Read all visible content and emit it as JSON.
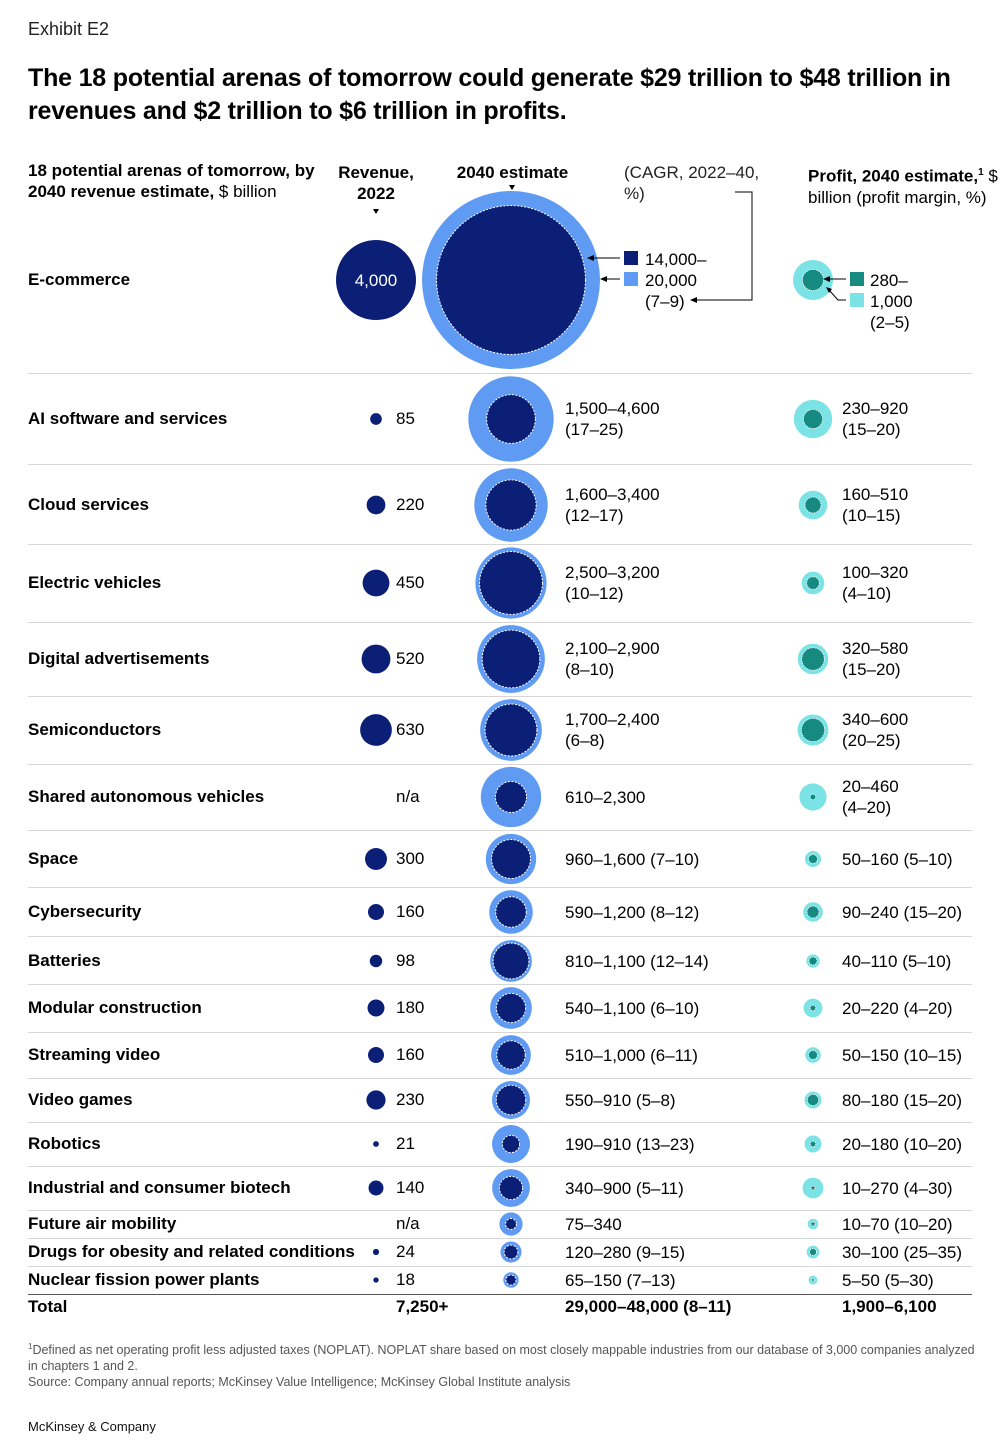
{
  "exhibit": "Exhibit E2",
  "title": "The 18 potential arenas of tomorrow could generate $29 trillion to $48 trillion in revenues and $2 trillion to $6 trillion in profits.",
  "headers": {
    "rows_bold": "18 potential arenas of tomorrow, by 2040 revenue estimate,",
    "rows_unit": " $ billion",
    "revenue": "Revenue, 2022",
    "estimate": "2040 estimate",
    "cagr": "(CAGR, 2022–40, %)",
    "profit_bold": "Profit, 2040 estimate,",
    "profit_sup": "1",
    "profit_unit": " $ billion (profit margin, %)"
  },
  "colors": {
    "revenue": "#0b1f76",
    "estimate_high": "#5f9bf2",
    "estimate_low": "#0b1f76",
    "profit_high": "#7be3e6",
    "profit_low": "#168a80"
  },
  "ecommerce_legend": {
    "revenue_label": "4,000",
    "est_low": "14,000–",
    "est_high": "20,000",
    "est_cagr": "(7–9)",
    "profit_low": "280–",
    "profit_high": "1,000",
    "profit_margin": "(2–5)"
  },
  "chart_data": {
    "type": "bubble",
    "unit": "$ billion",
    "rows": [
      {
        "name": "E-commerce",
        "revenue_2022": 4000,
        "revenue_label": "4,000",
        "est_low": 14000,
        "est_high": 20000,
        "est_label": "",
        "profit_low": 280,
        "profit_high": 1000,
        "profit_label": ""
      },
      {
        "name": "AI software and services",
        "revenue_2022": 85,
        "revenue_label": "85",
        "est_low": 1500,
        "est_high": 4600,
        "est_label": "1,500–4,600",
        "est_label2": "(17–25)",
        "profit_low": 230,
        "profit_high": 920,
        "profit_label": "230–920",
        "profit_label2": "(15–20)"
      },
      {
        "name": "Cloud services",
        "revenue_2022": 220,
        "revenue_label": "220",
        "est_low": 1600,
        "est_high": 3400,
        "est_label": "1,600–3,400",
        "est_label2": "(12–17)",
        "profit_low": 160,
        "profit_high": 510,
        "profit_label": "160–510",
        "profit_label2": "(10–15)"
      },
      {
        "name": "Electric vehicles",
        "revenue_2022": 450,
        "revenue_label": "450",
        "est_low": 2500,
        "est_high": 3200,
        "est_label": "2,500–3,200",
        "est_label2": "(10–12)",
        "profit_low": 100,
        "profit_high": 320,
        "profit_label": "100–320",
        "profit_label2": "(4–10)"
      },
      {
        "name": "Digital advertisements",
        "revenue_2022": 520,
        "revenue_label": "520",
        "est_low": 2100,
        "est_high": 2900,
        "est_label": "2,100–2,900",
        "est_label2": "(8–10)",
        "profit_low": 320,
        "profit_high": 580,
        "profit_label": "320–580",
        "profit_label2": "(15–20)"
      },
      {
        "name": "Semiconductors",
        "revenue_2022": 630,
        "revenue_label": "630",
        "est_low": 1700,
        "est_high": 2400,
        "est_label": "1,700–2,400",
        "est_label2": "(6–8)",
        "profit_low": 340,
        "profit_high": 600,
        "profit_label": "340–600",
        "profit_label2": "(20–25)"
      },
      {
        "name": "Shared autonomous vehicles",
        "revenue_2022": null,
        "revenue_label": "n/a",
        "est_low": 610,
        "est_high": 2300,
        "est_label": "610–2,300",
        "est_label2": "",
        "profit_low": 20,
        "profit_high": 460,
        "profit_label": "20–460",
        "profit_label2": "(4–20)"
      },
      {
        "name": "Space",
        "revenue_2022": 300,
        "revenue_label": "300",
        "est_low": 960,
        "est_high": 1600,
        "est_label": "960–1,600 (7–10)",
        "profit_low": 50,
        "profit_high": 160,
        "profit_label": "50–160 (5–10)"
      },
      {
        "name": "Cybersecurity",
        "revenue_2022": 160,
        "revenue_label": "160",
        "est_low": 590,
        "est_high": 1200,
        "est_label": "590–1,200 (8–12)",
        "profit_low": 90,
        "profit_high": 240,
        "profit_label": "90–240 (15–20)"
      },
      {
        "name": "Batteries",
        "revenue_2022": 98,
        "revenue_label": "98",
        "est_low": 810,
        "est_high": 1100,
        "est_label": "810–1,100 (12–14)",
        "profit_low": 40,
        "profit_high": 110,
        "profit_label": "40–110 (5–10)"
      },
      {
        "name": "Modular construction",
        "revenue_2022": 180,
        "revenue_label": "180",
        "est_low": 540,
        "est_high": 1100,
        "est_label": "540–1,100 (6–10)",
        "profit_low": 20,
        "profit_high": 220,
        "profit_label": "20–220 (4–20)"
      },
      {
        "name": "Streaming video",
        "revenue_2022": 160,
        "revenue_label": "160",
        "est_low": 510,
        "est_high": 1000,
        "est_label": "510–1,000 (6–11)",
        "profit_low": 50,
        "profit_high": 150,
        "profit_label": "50–150 (10–15)"
      },
      {
        "name": "Video games",
        "revenue_2022": 230,
        "revenue_label": "230",
        "est_low": 550,
        "est_high": 910,
        "est_label": "550–910 (5–8)",
        "profit_low": 80,
        "profit_high": 180,
        "profit_label": "80–180 (15–20)"
      },
      {
        "name": "Robotics",
        "revenue_2022": 21,
        "revenue_label": "21",
        "est_low": 190,
        "est_high": 910,
        "est_label": "190–910 (13–23)",
        "profit_low": 20,
        "profit_high": 180,
        "profit_label": "20–180 (10–20)"
      },
      {
        "name": "Industrial and consumer biotech",
        "revenue_2022": 140,
        "revenue_label": "140",
        "est_low": 340,
        "est_high": 900,
        "est_label": "340–900 (5–11)",
        "profit_low": 10,
        "profit_high": 270,
        "profit_label": "10–270 (4–30)"
      },
      {
        "name": "Future air mobility",
        "revenue_2022": null,
        "revenue_label": "n/a",
        "est_low": 75,
        "est_high": 340,
        "est_label": "75–340",
        "profit_low": 10,
        "profit_high": 70,
        "profit_label": "10–70 (10–20)"
      },
      {
        "name": "Drugs for obesity and related conditions",
        "revenue_2022": 24,
        "revenue_label": "24",
        "est_low": 120,
        "est_high": 280,
        "est_label": "120–280 (9–15)",
        "profit_low": 30,
        "profit_high": 100,
        "profit_label": "30–100 (25–35)"
      },
      {
        "name": "Nuclear fission power plants",
        "revenue_2022": 18,
        "revenue_label": "18",
        "est_low": 65,
        "est_high": 150,
        "est_label": "65–150 (7–13)",
        "profit_low": 5,
        "profit_high": 50,
        "profit_label": "5–50 (5–30)"
      }
    ],
    "total": {
      "label": "Total",
      "revenue": "7,250+",
      "estimate": "29,000–48,000 (8–11)",
      "profit": "1,900–6,100"
    }
  },
  "footnote_sup": "1",
  "footnote": "Defined as net operating profit less adjusted taxes (NOPLAT). NOPLAT share based on most closely mappable industries from our database of 3,000 companies analyzed in chapters 1 and 2.",
  "source": "Source: Company annual reports; McKinsey Value Intelligence; McKinsey Global Institute analysis",
  "brand": "McKinsey & Company"
}
